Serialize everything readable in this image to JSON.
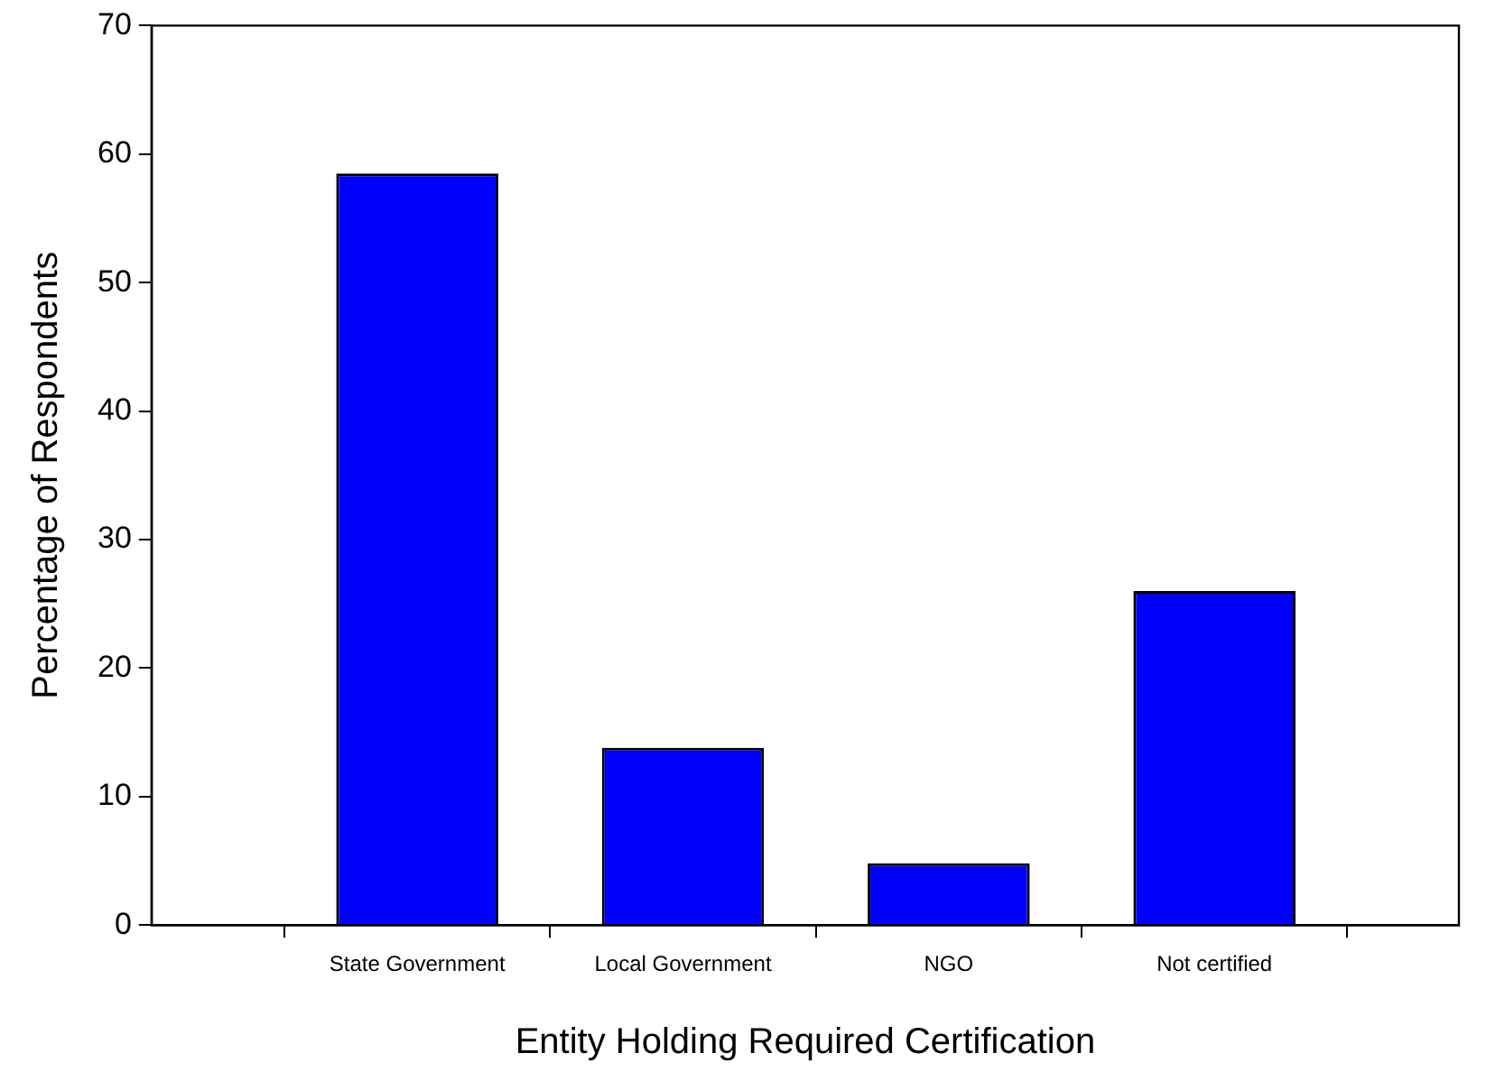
{
  "chart_data": {
    "type": "bar",
    "xlabel": "Entity Holding Required Certification",
    "ylabel": "Percentage of Respondents",
    "categories": [
      "State Government",
      "Local Government",
      "NGO",
      "Not certified"
    ],
    "values": [
      58.5,
      13.8,
      4.8,
      26.0
    ],
    "color": "#0000ff",
    "ylim": [
      0,
      70
    ],
    "yticks": [
      0,
      10,
      20,
      30,
      40,
      50,
      60,
      70
    ],
    "grid": false,
    "legend": false
  }
}
